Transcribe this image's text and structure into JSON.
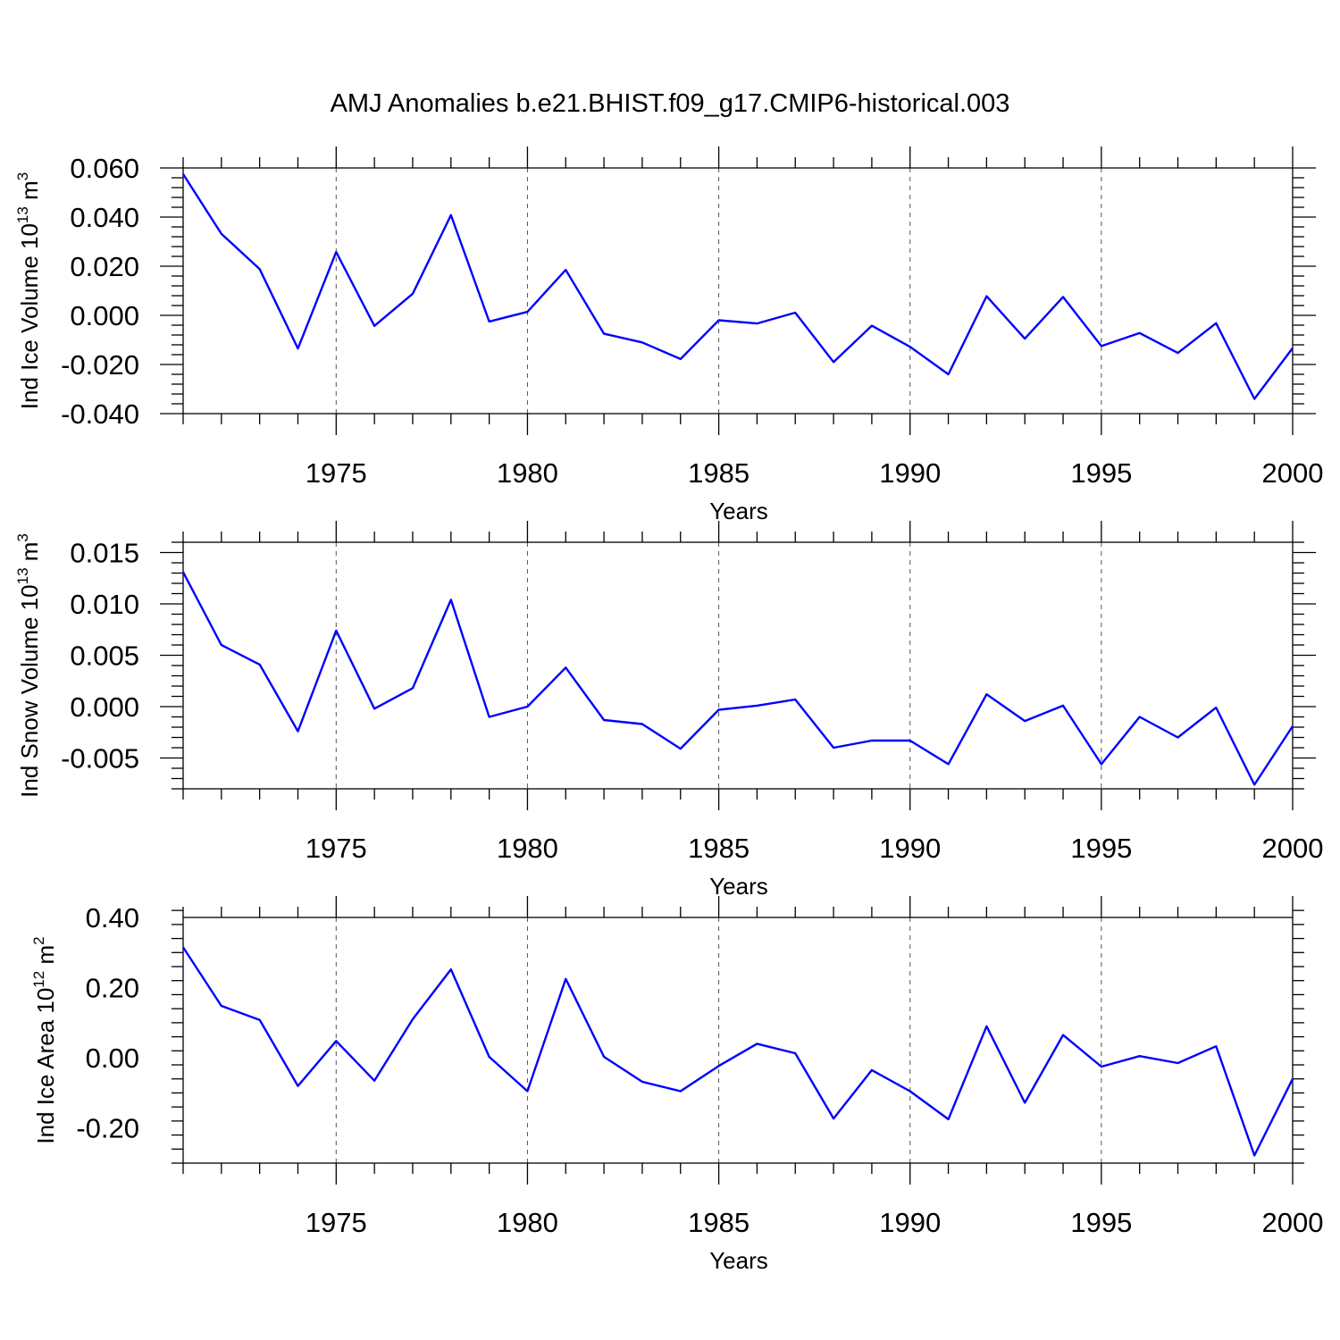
{
  "title": "AMJ Anomalies b.e21.BHIST.f09_g17.CMIP6-historical.003",
  "colors": {
    "line": "#0000ff",
    "axis": "#000000",
    "grid": "#555555"
  },
  "chart_data": [
    {
      "type": "line",
      "ylabel": {
        "prefix": "Ind Ice Volume 10",
        "exp": "13",
        "unit": " m",
        "unit_exp": "3"
      },
      "xlabel": "Years",
      "xlim": [
        1971,
        2000
      ],
      "ylim": [
        -0.04,
        0.06
      ],
      "yticks": [
        0.06,
        0.04,
        0.02,
        0.0,
        -0.02,
        -0.04
      ],
      "ytick_labels": [
        "0.060",
        "0.040",
        "0.020",
        "0.000",
        "-0.020",
        "-0.040"
      ],
      "xticks": [
        1975,
        1980,
        1985,
        1990,
        1995,
        2000
      ],
      "xtick_labels": [
        "1975",
        "1980",
        "1985",
        "1990",
        "1995",
        "2000"
      ],
      "grid": "vertical dashed at labeled years",
      "x": [
        1971,
        1972,
        1973,
        1974,
        1975,
        1976,
        1977,
        1978,
        1979,
        1980,
        1981,
        1982,
        1983,
        1984,
        1985,
        1986,
        1987,
        1988,
        1989,
        1990,
        1991,
        1992,
        1993,
        1994,
        1995,
        1996,
        1997,
        1998,
        1999,
        2000
      ],
      "y": [
        0.0575,
        0.0332,
        0.0188,
        -0.0135,
        0.0258,
        -0.0043,
        0.0088,
        0.0408,
        -0.0025,
        0.0014,
        0.0185,
        -0.0075,
        -0.011,
        -0.0178,
        -0.002,
        -0.0033,
        0.0011,
        -0.019,
        -0.0042,
        -0.0128,
        -0.024,
        0.0078,
        -0.0095,
        0.0075,
        -0.0125,
        -0.0072,
        -0.0153,
        -0.0032,
        -0.034,
        -0.0133
      ]
    },
    {
      "type": "line",
      "ylabel": {
        "prefix": "Ind Snow Volume 10",
        "exp": "13",
        "unit": " m",
        "unit_exp": "3"
      },
      "xlabel": "Years",
      "xlim": [
        1971,
        2000
      ],
      "ylim": [
        -0.008,
        0.016
      ],
      "yticks": [
        0.015,
        0.01,
        0.005,
        0.0,
        -0.005
      ],
      "ytick_labels": [
        "0.015",
        "0.010",
        "0.005",
        "0.000",
        "-0.005"
      ],
      "xticks": [
        1975,
        1980,
        1985,
        1990,
        1995,
        2000
      ],
      "xtick_labels": [
        "1975",
        "1980",
        "1985",
        "1990",
        "1995",
        "2000"
      ],
      "grid": "vertical dashed at labeled years",
      "x": [
        1971,
        1972,
        1973,
        1974,
        1975,
        1976,
        1977,
        1978,
        1979,
        1980,
        1981,
        1982,
        1983,
        1984,
        1985,
        1986,
        1987,
        1988,
        1989,
        1990,
        1991,
        1992,
        1993,
        1994,
        1995,
        1996,
        1997,
        1998,
        1999,
        2000
      ],
      "y": [
        0.0131,
        0.006,
        0.0041,
        -0.0024,
        0.0074,
        -0.0002,
        0.0018,
        0.0104,
        -0.001,
        0.0,
        0.0038,
        -0.0013,
        -0.0017,
        -0.0041,
        -0.0003,
        0.0001,
        0.0007,
        -0.004,
        -0.0033,
        -0.0033,
        -0.0056,
        0.0012,
        -0.0014,
        0.0001,
        -0.0056,
        -0.001,
        -0.003,
        -0.0001,
        -0.0076,
        -0.0019
      ]
    },
    {
      "type": "line",
      "ylabel": {
        "prefix": "Ind Ice Area 10",
        "exp": "12",
        "unit": " m",
        "unit_exp": "2"
      },
      "xlabel": "Years",
      "xlim": [
        1971,
        2000
      ],
      "ylim": [
        -0.3,
        0.4
      ],
      "yticks": [
        0.4,
        0.2,
        0.0,
        -0.2
      ],
      "ytick_labels": [
        "0.40",
        "0.20",
        "0.00",
        "-0.20"
      ],
      "xticks": [
        1975,
        1980,
        1985,
        1990,
        1995,
        2000
      ],
      "xtick_labels": [
        "1975",
        "1980",
        "1985",
        "1990",
        "1995",
        "2000"
      ],
      "grid": "vertical dashed at labeled years",
      "x": [
        1971,
        1972,
        1973,
        1974,
        1975,
        1976,
        1977,
        1978,
        1979,
        1980,
        1981,
        1982,
        1983,
        1984,
        1985,
        1986,
        1987,
        1988,
        1989,
        1990,
        1991,
        1992,
        1993,
        1994,
        1995,
        1996,
        1997,
        1998,
        1999,
        2000
      ],
      "y": [
        0.315,
        0.148,
        0.108,
        -0.08,
        0.048,
        -0.065,
        0.11,
        0.252,
        0.003,
        -0.095,
        0.225,
        0.003,
        -0.068,
        -0.095,
        -0.023,
        0.04,
        0.013,
        -0.173,
        -0.035,
        -0.095,
        -0.175,
        0.09,
        -0.128,
        0.065,
        -0.025,
        0.005,
        -0.015,
        0.033,
        -0.278,
        -0.06
      ]
    }
  ]
}
